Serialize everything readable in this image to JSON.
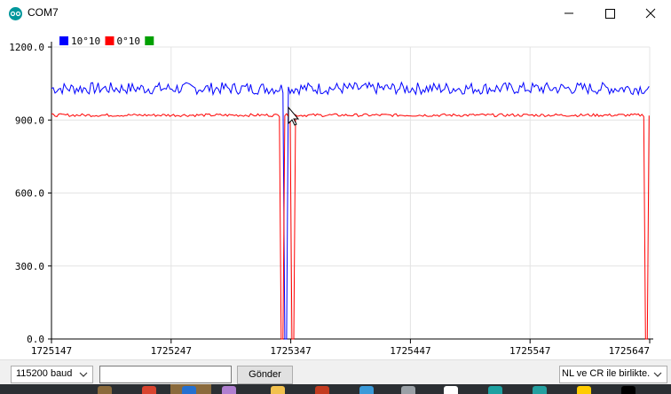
{
  "window": {
    "title": "COM7",
    "minimize_glyph": "—",
    "maximize_glyph": "☐",
    "close_glyph": "✕"
  },
  "legend": [
    {
      "label": "10°10",
      "color": "#0000ff"
    },
    {
      "label": "0°10",
      "color": "#ff0000"
    },
    {
      "label": "",
      "color": "#00a000"
    }
  ],
  "chart_data": {
    "type": "line",
    "x_ticks": [
      "1725147",
      "1725247",
      "1725347",
      "1725447",
      "1725547",
      "1725647"
    ],
    "y_ticks": [
      "1200.0",
      "900.0",
      "600.0",
      "300.0",
      "0.0"
    ],
    "xlim": [
      1725147,
      1725647
    ],
    "ylim": [
      0,
      1200
    ],
    "grid": true,
    "legend_position": "top-left",
    "series": [
      {
        "name": "10°10",
        "color": "#0000ff",
        "approx_level": 1030,
        "approx_noise": 25,
        "drops": [
          {
            "x": 1725343,
            "value": 0
          }
        ]
      },
      {
        "name": "0°10",
        "color": "#ff0000",
        "approx_level": 920,
        "approx_noise": 6,
        "drops": [
          {
            "x": 1725340,
            "value": 0
          },
          {
            "x": 1725349,
            "value": 0
          },
          {
            "x": 1725644,
            "value": 0
          }
        ]
      }
    ]
  },
  "controls": {
    "baud_label": "115200 baud",
    "send_value": "",
    "send_label": "Gönder",
    "line_ending_label": "NL ve CR ile birlikte."
  },
  "icons": {
    "app": "arduino-icon",
    "dropdown": "chevron-down-icon"
  },
  "taskbar_colors": [
    "#8a6a3c",
    "#d9442f",
    "#2470d0",
    "#b07fd0",
    "#f2c14e",
    "#c33b1f",
    "#3a9ad9",
    "#9aa0a6",
    "#ffffff",
    "#1da1a1",
    "#24a0a0",
    "#ffcc00",
    "#000000"
  ]
}
